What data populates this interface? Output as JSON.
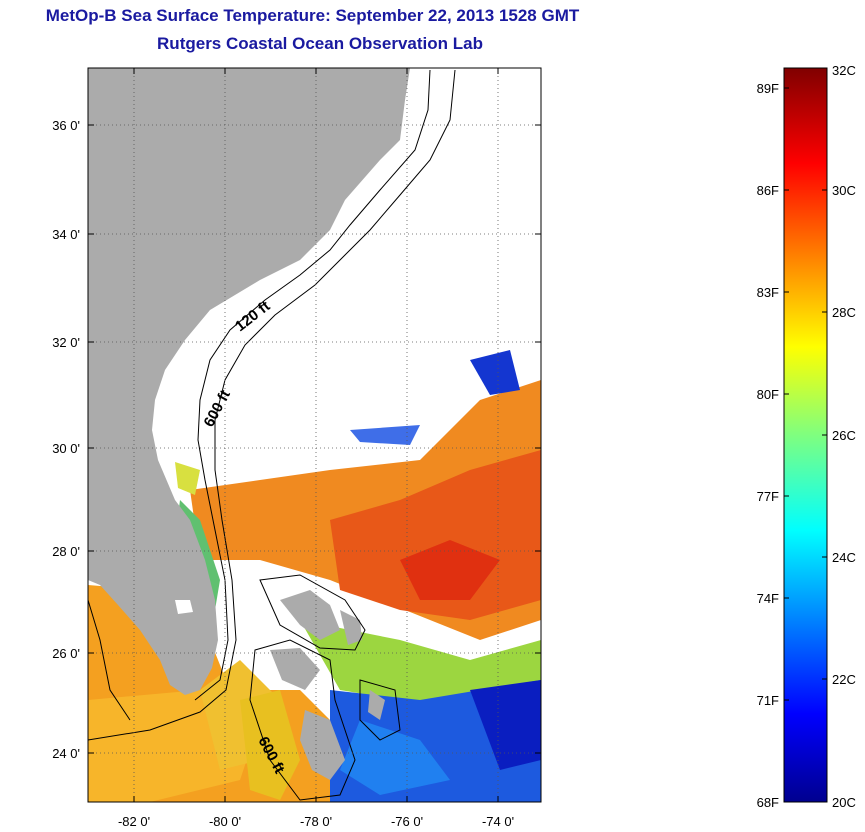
{
  "header": {
    "title": "MetOp-B Sea Surface Temperature:  September 22, 2013 1528 GMT",
    "subtitle": "Rutgers Coastal Ocean Observation Lab"
  },
  "map": {
    "longitude_ticks": [
      "-82 0'",
      "-80 0'",
      "-78 0'",
      "-76 0'",
      "-74 0'"
    ],
    "latitude_ticks": [
      "36 0'",
      "34 0'",
      "32 0'",
      "30 0'",
      "28 0'",
      "26 0'",
      "24 0'"
    ],
    "depth_contours": [
      "120 ft",
      "600 ft",
      "600 ft"
    ],
    "colors": {
      "land": "#ababab",
      "cloud": "#ffffff",
      "contour": "#000000"
    }
  },
  "colorbar": {
    "celsius_labels": [
      "32C",
      "30C",
      "28C",
      "26C",
      "24C",
      "22C",
      "20C"
    ],
    "fahrenheit_labels": [
      "89F",
      "86F",
      "83F",
      "80F",
      "77F",
      "74F",
      "71F",
      "68F"
    ],
    "range_c": [
      20,
      32
    ],
    "scheme": "jet"
  }
}
